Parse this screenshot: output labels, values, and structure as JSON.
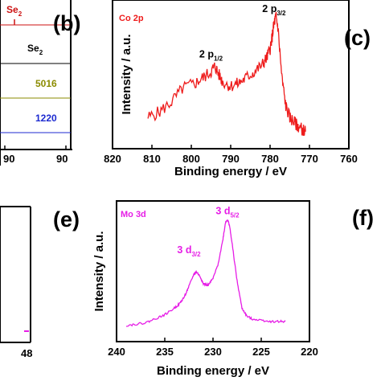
{
  "colors": {
    "co_series": "#ee1c1c",
    "mo_series": "#e61ee6",
    "axes": "#000000",
    "crop_blue": "#1c2ad0",
    "crop_olive": "#8b8b00",
    "crop_red": "#cc1111"
  },
  "crops": {
    "left_top": {
      "label_1": "Se",
      "label_1_sub": "2",
      "label_2": "Se",
      "label_2_sub": "2",
      "code_1": "5016",
      "code_2": "1220",
      "tick_1": "90",
      "tick_2": "90"
    },
    "left_bottom": {
      "tick": "48"
    },
    "panel_c": {
      "letter": "(c)"
    },
    "panel_f": {
      "letter": "(f)"
    }
  },
  "chart_data": [
    {
      "panel": "(b)",
      "type": "line",
      "title": "Co 2p",
      "xlabel": "Binding energy / eV",
      "ylabel": "Intensity / a.u.",
      "xlim": [
        820,
        760
      ],
      "x_reversed": true,
      "xticks": [
        820,
        810,
        800,
        790,
        780,
        770,
        760
      ],
      "y_ticks_shown": false,
      "ylim": [
        0,
        100
      ],
      "annotations": [
        {
          "main": "2 p",
          "sub": "1/2",
          "x": 795,
          "y": 64
        },
        {
          "main": "2 p",
          "sub": "3/2",
          "x": 779,
          "y": 96
        }
      ],
      "series": [
        {
          "x": [
            811,
            808,
            805,
            802,
            799,
            797,
            795,
            794,
            793,
            792,
            790,
            788,
            786,
            784,
            782,
            781,
            780,
            779.5,
            779,
            778.5,
            778,
            777,
            776,
            775,
            774,
            773,
            772,
            771
          ],
          "y": [
            22,
            26,
            33,
            43,
            46,
            50,
            54,
            58,
            52,
            47,
            44,
            46,
            50,
            54,
            59,
            63,
            70,
            78,
            88,
            93,
            85,
            50,
            30,
            22,
            19,
            16,
            14,
            12
          ]
        }
      ]
    },
    {
      "panel": "(e)",
      "type": "line",
      "title": "Mo 3d",
      "xlabel": "Binding energy / eV",
      "ylabel": "Intensity / a.u.",
      "xlim": [
        240,
        220
      ],
      "x_reversed": true,
      "xticks": [
        240,
        235,
        230,
        225,
        220
      ],
      "y_ticks_shown": false,
      "ylim": [
        0,
        100
      ],
      "annotations": [
        {
          "main": "3 d",
          "sub": "3/2",
          "x": 232.5,
          "y": 66
        },
        {
          "main": "3 d",
          "sub": "5/2",
          "x": 228.5,
          "y": 95
        }
      ],
      "series": [
        {
          "x": [
            239,
            238,
            237,
            236,
            235,
            234,
            233.5,
            233,
            232.5,
            232,
            231.7,
            231.3,
            231,
            230.5,
            230,
            229.5,
            229,
            228.7,
            228.5,
            228.3,
            228,
            227.5,
            227,
            226.5,
            226,
            225,
            224,
            223,
            222.5
          ],
          "y": [
            12,
            13,
            14,
            17,
            20,
            25,
            28,
            33,
            41,
            50,
            52,
            48,
            43,
            42,
            47,
            57,
            75,
            89,
            91,
            87,
            72,
            45,
            25,
            19,
            17,
            16,
            15,
            15,
            15
          ]
        }
      ]
    }
  ]
}
